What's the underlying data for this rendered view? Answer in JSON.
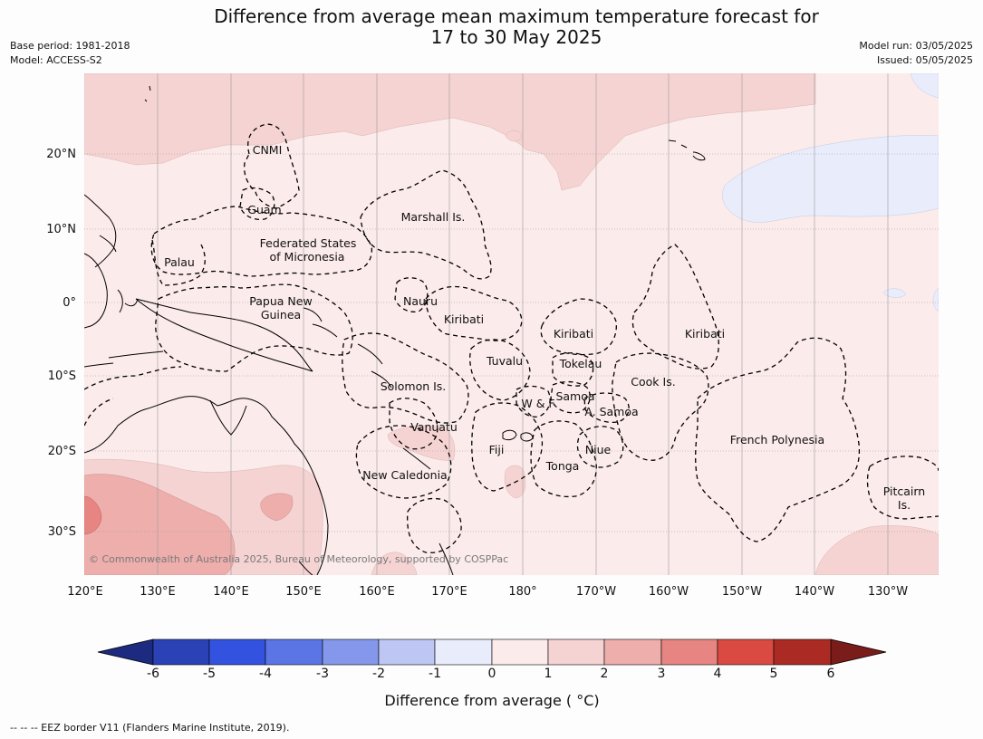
{
  "title": {
    "line1": "Difference from average mean maximum temperature forecast for",
    "line2": "17 to 30 May 2025"
  },
  "meta_left": {
    "base_period": "Base period: 1981-2018",
    "model": "Model: ACCESS-S2"
  },
  "meta_right": {
    "model_run": "Model run: 03/05/2025",
    "issued": "Issued: 05/05/2025"
  },
  "map": {
    "lat_labels": [
      "20°N",
      "10°N",
      "0°",
      "10°S",
      "20°S",
      "30°S"
    ],
    "lon_labels": [
      "120°E",
      "130°E",
      "140°E",
      "150°E",
      "160°E",
      "170°E",
      "180°",
      "170°W",
      "160°W",
      "150°W",
      "140°W",
      "130°W"
    ],
    "regions": [
      "CNMI",
      "Guam",
      "Marshall Is.",
      "Federated States",
      "of Micronesia",
      "Palau",
      "Papua New",
      "Guinea",
      "Nauru",
      "Kiribati",
      "Kiribati",
      "Kiribati",
      "Tuvalu",
      "Tokelau",
      "Cook Is.",
      "Solomon Is.",
      "W & F",
      "Samoa",
      "A. Samoa",
      "Vanuatu",
      "Fiji",
      "Niue",
      "French Polynesia",
      "Tonga",
      "New Caledonia",
      "Pitcairn",
      "Is."
    ],
    "copyright": "© Commonwealth of Australia 2025, Bureau of Meteorology, supported by COSPPac",
    "colors": {
      "ocean_base": "#fbebea",
      "anom_1_2": "#f5d3d2",
      "anom_2_3": "#edaeac",
      "anom_3_4": "#e68581",
      "anom_neg": "#e8ecfb",
      "land_outline": "#000000"
    }
  },
  "colorbar": {
    "ticks": [
      "-6",
      "-5",
      "-4",
      "-3",
      "-2",
      "-1",
      "0",
      "1",
      "2",
      "3",
      "4",
      "5",
      "6"
    ],
    "label": "Difference from average ( °C)",
    "colors": [
      "#1c2a80",
      "#2a42b6",
      "#3352e0",
      "#5b75e4",
      "#8597ea",
      "#bec7f3",
      "#e8ecfb",
      "#fbebea",
      "#f5d3d2",
      "#edaeac",
      "#e68581",
      "#da4a42",
      "#ab2b24",
      "#7a1c1a"
    ]
  },
  "footer": "--  --  -- EEZ border V11 (Flanders Marine Institute, 2019)."
}
